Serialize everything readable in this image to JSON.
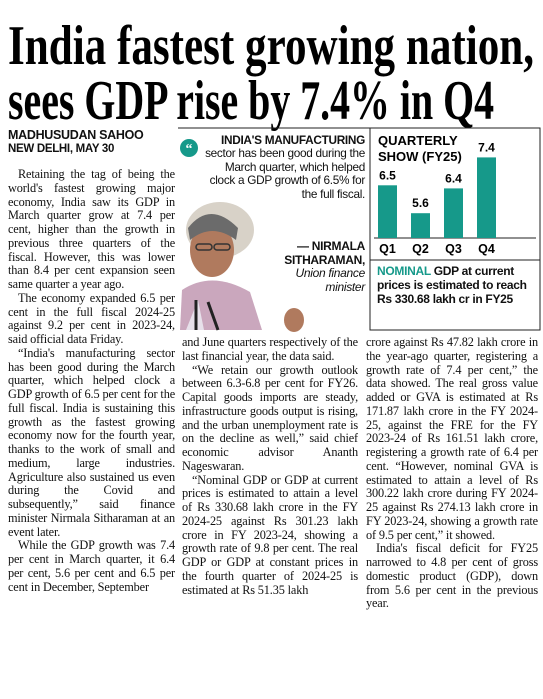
{
  "headline": {
    "lines": [
      "India fastest growing nation,",
      "sees GDP rise by 7.4% in Q4"
    ]
  },
  "byline": {
    "author": "MADHUSUDAN SAHOO",
    "dateline": "NEW DELHI, MAY 30"
  },
  "quote": {
    "lead": "INDIA'S MANUFACTURING",
    "text": "sector has been good during the March quarter, which helped clock a GDP growth of 6.5% for the full fiscal.",
    "speaker": "— NIRMALA SITHARAMAN,",
    "role": "Union finance minister"
  },
  "chart": {
    "type": "bar",
    "title": "QUARTERLY SHOW (FY25)",
    "categories": [
      "Q1",
      "Q2",
      "Q3",
      "Q4"
    ],
    "values": [
      6.5,
      5.6,
      6.4,
      7.4
    ],
    "color": "#16998a"
  },
  "note": {
    "lead": "NOMINAL",
    "text": "GDP at current prices is estimated to reach Rs 330.68 lakh cr in FY25"
  },
  "columns": [
    [
      "Retaining the tag of being the world's fastest growing major economy, India saw its GDP in March quarter grow at 7.4 per cent, higher than the growth in previous three quarters of the fiscal. However, this was lower than 8.4 per cent expansion seen same quarter a year ago.",
      "The economy expanded 6.5 per cent in the full fiscal 2024-25 against 9.2 per cent in 2023-24, said official data Friday.",
      "“India's manufacturing sector has been good during the March quarter, which helped clock a GDP growth of 6.5 per cent for the full fiscal. India is sustaining this growth as the fastest growing economy now for the fourth year, thanks to the work of small and medium, large industries. Agriculture also sustained us even during the Covid and subsequently,” said finance minister Nirmala Sitharaman at an event later.",
      "While the GDP growth was 7.4 per cent in March quarter, it 6.4 per cent, 5.6 per cent and 6.5 per cent in December, September"
    ],
    [
      "and June quarters respectively of the last financial year, the data said.",
      "“We retain our growth outlook between 6.3-6.8 per cent for FY26. Capital goods imports are steady, infrastructure goods output is rising, and the urban unemployment rate is on the decline as well,” said chief economic advisor Ananth Nageswaran.",
      "“Nominal GDP or GDP at current prices is estimated to attain a level of Rs 330.68 lakh crore in the FY 2024-25 against Rs 301.23 lakh crore in FY 2023-24, showing a growth rate of 9.8 per cent. The real GDP or GDP at constant prices in the fourth quarter of 2024-25 is estimated at Rs 51.35 lakh"
    ],
    [
      "crore against Rs 47.82 lakh crore in the year-ago quarter, registering a growth rate of 7.4 per cent,” the data showed. The real gross value added or GVA is estimated at Rs 171.87 lakh crore in the FY 2024-25, against the FRE for the FY 2023-24 of Rs 161.51 lakh crore, registering a growth rate of 6.4 per cent. “However, nominal GVA is estimated to attain a level of Rs 300.22 lakh crore during FY 2024-25 against Rs 274.13 lakh crore in FY 2023-24, showing a growth rate of 9.5 per cent,” it showed.",
      "India's fiscal deficit for FY25 narrowed to 4.8 per cent of gross domestic product (GDP), down from 5.6 per cent in the previous year."
    ]
  ]
}
